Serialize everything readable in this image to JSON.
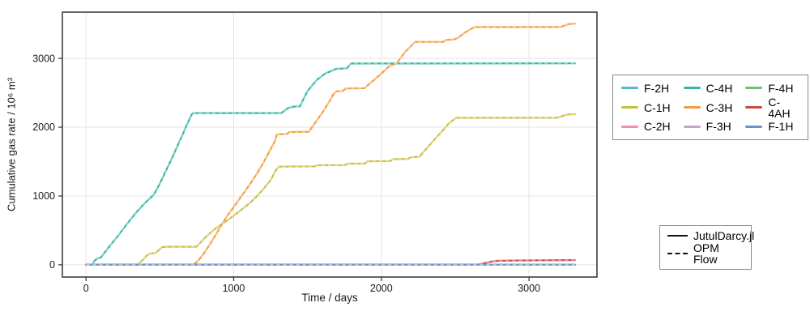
{
  "chart_data": {
    "type": "line",
    "title": "",
    "xlabel": "Time / days",
    "ylabel": "Cumulative gas rate / 10⁶ m³",
    "xlim": [
      -160,
      3460
    ],
    "ylim": [
      -178,
      3672
    ],
    "xticks": [
      0,
      1000,
      2000,
      3000
    ],
    "yticks": [
      0,
      1000,
      2000,
      3000
    ],
    "xtick_labels": [
      "0",
      "1000",
      "2000",
      "3000"
    ],
    "ytick_labels": [
      "0",
      "1000",
      "2000",
      "3000"
    ],
    "grid": true,
    "legend_position": "right-outside",
    "solvers": [
      {
        "name": "JutulDarcy.jl",
        "style": "solid"
      },
      {
        "name": "OPM Flow",
        "style": "dashed"
      }
    ],
    "series": [
      {
        "name": "F-2H",
        "color": "#56b7c6",
        "points": [
          [
            0,
            0
          ],
          [
            3310,
            0
          ]
        ]
      },
      {
        "name": "C-1H",
        "color": "#c9bf3f",
        "points": [
          [
            0,
            0
          ],
          [
            345,
            0
          ],
          [
            380,
            60
          ],
          [
            410,
            130
          ],
          [
            430,
            160
          ],
          [
            470,
            172
          ],
          [
            495,
            215
          ],
          [
            515,
            255
          ],
          [
            550,
            262
          ],
          [
            747,
            262
          ],
          [
            800,
            380
          ],
          [
            860,
            500
          ],
          [
            920,
            590
          ],
          [
            980,
            680
          ],
          [
            1040,
            780
          ],
          [
            1100,
            880
          ],
          [
            1143,
            965
          ],
          [
            1200,
            1100
          ],
          [
            1250,
            1230
          ],
          [
            1290,
            1390
          ],
          [
            1308,
            1428
          ],
          [
            1550,
            1430
          ],
          [
            1565,
            1447
          ],
          [
            1755,
            1449
          ],
          [
            1772,
            1470
          ],
          [
            1890,
            1472
          ],
          [
            1905,
            1505
          ],
          [
            2060,
            1508
          ],
          [
            2080,
            1535
          ],
          [
            2180,
            1540
          ],
          [
            2200,
            1562
          ],
          [
            2258,
            1572
          ],
          [
            2310,
            1700
          ],
          [
            2360,
            1820
          ],
          [
            2410,
            1940
          ],
          [
            2460,
            2060
          ],
          [
            2505,
            2135
          ],
          [
            3190,
            2138
          ],
          [
            3260,
            2185
          ],
          [
            3310,
            2188
          ]
        ]
      },
      {
        "name": "C-2H",
        "color": "#f28fad",
        "points": [
          [
            0,
            0
          ],
          [
            3310,
            0
          ]
        ]
      },
      {
        "name": "C-4H",
        "color": "#33b5a4",
        "points": [
          [
            0,
            0
          ],
          [
            40,
            0
          ],
          [
            55,
            50
          ],
          [
            75,
            90
          ],
          [
            100,
            105
          ],
          [
            160,
            270
          ],
          [
            220,
            430
          ],
          [
            280,
            600
          ],
          [
            340,
            760
          ],
          [
            400,
            900
          ],
          [
            460,
            1020
          ],
          [
            500,
            1180
          ],
          [
            540,
            1360
          ],
          [
            580,
            1540
          ],
          [
            620,
            1730
          ],
          [
            660,
            1920
          ],
          [
            690,
            2070
          ],
          [
            715,
            2180
          ],
          [
            724,
            2205
          ],
          [
            1322,
            2205
          ],
          [
            1370,
            2280
          ],
          [
            1410,
            2300
          ],
          [
            1448,
            2302
          ],
          [
            1500,
            2527
          ],
          [
            1560,
            2680
          ],
          [
            1620,
            2780
          ],
          [
            1695,
            2848
          ],
          [
            1767,
            2856
          ],
          [
            1794,
            2925
          ],
          [
            3310,
            2928
          ]
        ]
      },
      {
        "name": "C-3H",
        "color": "#f49b3e",
        "points": [
          [
            0,
            0
          ],
          [
            725,
            0
          ],
          [
            760,
            60
          ],
          [
            800,
            170
          ],
          [
            840,
            300
          ],
          [
            880,
            440
          ],
          [
            920,
            590
          ],
          [
            960,
            720
          ],
          [
            1000,
            840
          ],
          [
            1050,
            990
          ],
          [
            1100,
            1140
          ],
          [
            1150,
            1300
          ],
          [
            1200,
            1480
          ],
          [
            1250,
            1680
          ],
          [
            1280,
            1800
          ],
          [
            1292,
            1895
          ],
          [
            1363,
            1901
          ],
          [
            1375,
            1930
          ],
          [
            1510,
            1934
          ],
          [
            1550,
            2060
          ],
          [
            1600,
            2210
          ],
          [
            1650,
            2380
          ],
          [
            1676,
            2480
          ],
          [
            1695,
            2522
          ],
          [
            1740,
            2527
          ],
          [
            1757,
            2562
          ],
          [
            1885,
            2567
          ],
          [
            1930,
            2650
          ],
          [
            1990,
            2760
          ],
          [
            2050,
            2880
          ],
          [
            2104,
            2930
          ],
          [
            2160,
            3090
          ],
          [
            2210,
            3200
          ],
          [
            2230,
            3240
          ],
          [
            2420,
            3241
          ],
          [
            2445,
            3270
          ],
          [
            2490,
            3273
          ],
          [
            2520,
            3300
          ],
          [
            2570,
            3380
          ],
          [
            2630,
            3455
          ],
          [
            3215,
            3456
          ],
          [
            3270,
            3500
          ],
          [
            3310,
            3505
          ]
        ]
      },
      {
        "name": "F-3H",
        "color": "#c7a0d8",
        "points": [
          [
            0,
            0
          ],
          [
            3310,
            0
          ]
        ]
      },
      {
        "name": "F-4H",
        "color": "#6fbf70",
        "points": [
          [
            0,
            0
          ],
          [
            3310,
            0
          ]
        ]
      },
      {
        "name": "C-4AH",
        "color": "#cb4a45",
        "points": [
          [
            0,
            0
          ],
          [
            2650,
            0
          ],
          [
            2700,
            25
          ],
          [
            2750,
            48
          ],
          [
            2790,
            58
          ],
          [
            2900,
            62
          ],
          [
            3100,
            64
          ],
          [
            3310,
            68
          ]
        ]
      },
      {
        "name": "F-1H",
        "color": "#6e90ca",
        "points": [
          [
            0,
            0
          ],
          [
            3310,
            0
          ]
        ]
      }
    ]
  },
  "axes": {
    "xlabel": "Time / days",
    "ylabel": "Cumulative gas rate / 10⁶ m³"
  }
}
